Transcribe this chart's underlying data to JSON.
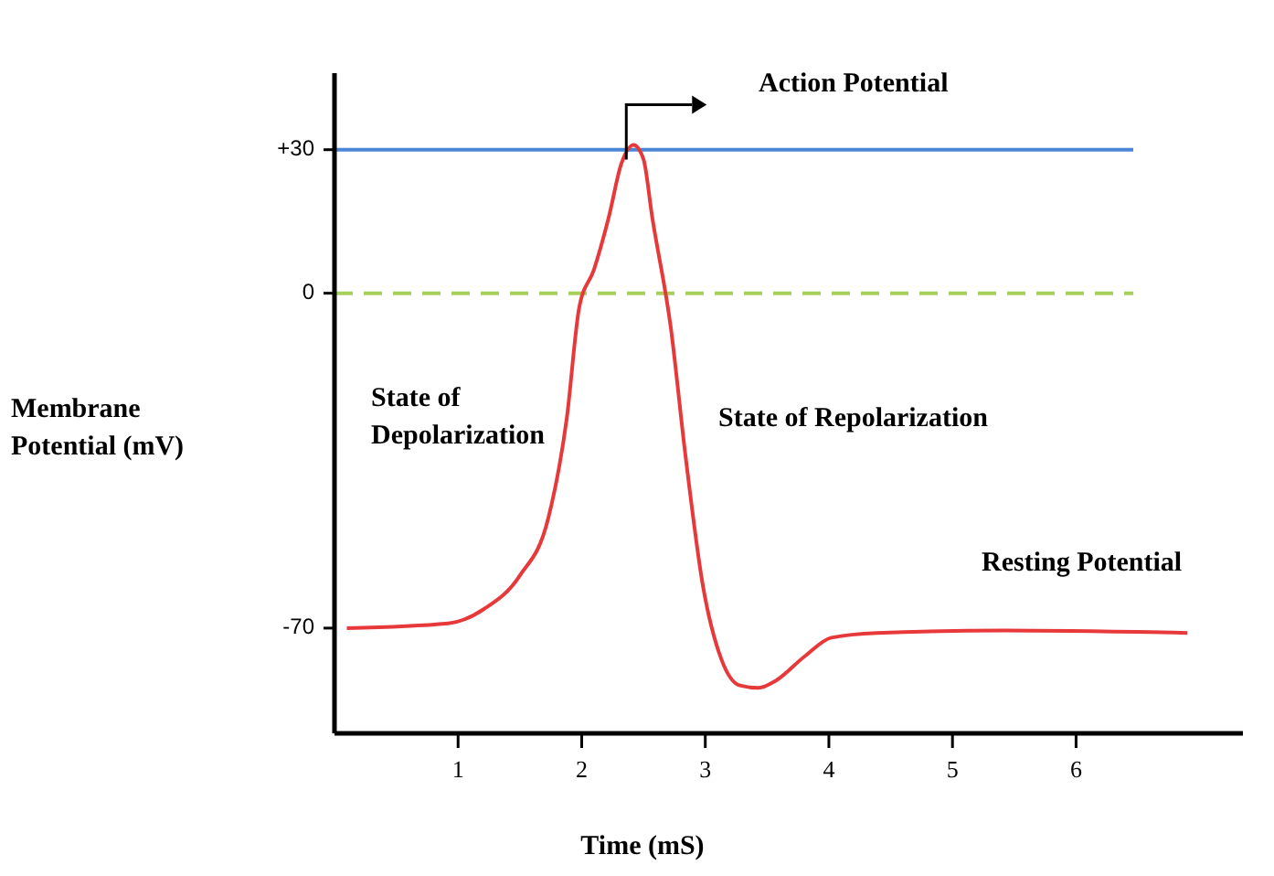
{
  "chart_data": {
    "type": "line",
    "xlabel": "Time (mS)",
    "ylabel": "Membrane\nPotential (mV)",
    "xlim": [
      0,
      7.35
    ],
    "ylim": [
      -92,
      46
    ],
    "xticks": [
      1,
      2,
      3,
      4,
      5,
      6
    ],
    "yticks": [
      -70,
      0,
      {
        "value": 30,
        "label": "+30"
      }
    ],
    "series": [
      {
        "color": "#e8393a",
        "x": [
          0.1,
          0.92,
          1.21,
          1.5,
          1.73,
          1.88,
          1.98,
          2.1,
          2.22,
          2.32,
          2.42,
          2.5,
          2.57,
          2.72,
          2.84,
          2.98,
          3.13,
          3.28,
          3.43,
          3.57,
          3.8,
          4.02,
          4.39,
          5.42,
          6.9
        ],
        "values": [
          -70,
          -69,
          -66,
          -59,
          -47,
          -26,
          -3,
          5,
          16,
          27,
          31,
          28,
          16,
          -7,
          -34,
          -61,
          -76.5,
          -82,
          -82.5,
          -81,
          -76,
          -72,
          -71,
          -70.5,
          -71
        ]
      }
    ],
    "ref_lines": [
      {
        "axis": "y",
        "value": 30,
        "color": "#4a86d8",
        "line_style": "solid"
      },
      {
        "axis": "y",
        "value": 0,
        "color": "#a6d05a",
        "line_style": "dashed"
      }
    ],
    "annotations": [
      "Action Potential",
      "State of\nDepolarization",
      "State of Repolarization",
      "Resting Potential"
    ],
    "marker": "none",
    "line_style": "solid"
  }
}
